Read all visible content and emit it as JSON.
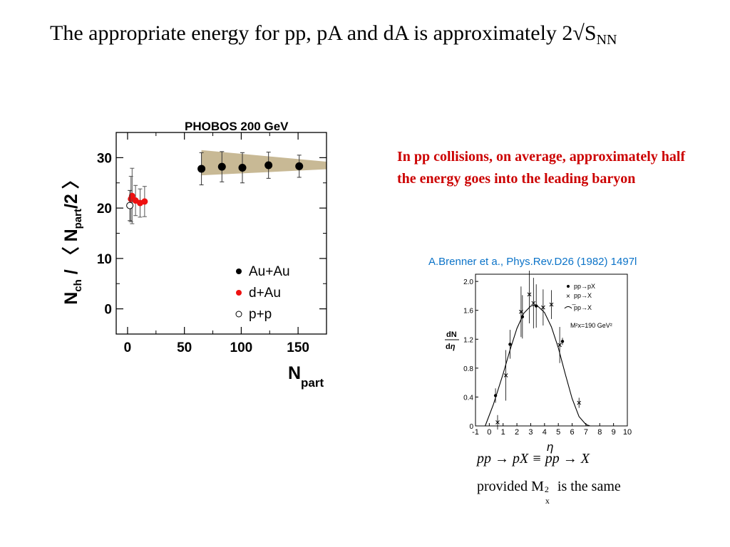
{
  "title": {
    "main": "The appropriate energy for pp, pA and dA is approximately 2√S",
    "sub": "NN"
  },
  "note": "In pp collisions, on average, approximately half the energy goes into the leading baryon",
  "citation": "A.Brenner et a., Phys.Rev.D26 (1982) 1497l",
  "equation1": "pp → pX ≡ pp → X",
  "equation2": {
    "prefix": "provided M",
    "sup": "2",
    "sub": "x",
    "suffix": " is the same"
  },
  "colors": {
    "note": "#cc0000",
    "citation": "#0b73c8",
    "dAu": "#ee1111",
    "band": "#c8b995"
  },
  "chart_data": [
    {
      "type": "scatter",
      "title": "PHOBOS 200 GeV",
      "xlabel": "N",
      "xlabel_sub": "part",
      "ylabel": "N_ch / 〈N_part/2〉",
      "xlim": [
        -10,
        175
      ],
      "ylim": [
        -5,
        35
      ],
      "xticks": [
        "0",
        "50",
        "100",
        "150"
      ],
      "yticks": [
        "0",
        "10",
        "20",
        "30"
      ],
      "legend_position": "bottom-right",
      "series": [
        {
          "name": "Au+Au",
          "marker": "filled-black",
          "x": [
            65,
            83,
            101,
            124,
            151
          ],
          "y": [
            27.8,
            28.2,
            28.0,
            28.5,
            28.3
          ],
          "err": [
            3.2,
            3.0,
            3.0,
            2.6,
            2.2
          ]
        },
        {
          "name": "d+Au",
          "marker": "filled-red",
          "x": [
            3,
            4,
            7,
            11,
            15
          ],
          "y": [
            21.8,
            22.4,
            21.5,
            21.0,
            21.3
          ],
          "err": [
            4.5,
            5.5,
            3.0,
            2.8,
            3.0
          ]
        },
        {
          "name": "p+p",
          "marker": "open",
          "x": [
            2
          ],
          "y": [
            20.5
          ],
          "err": [
            3.0
          ]
        }
      ],
      "band": {
        "x": [
          65,
          175
        ],
        "upper": [
          31.5,
          29.2
        ],
        "lower": [
          26.5,
          27.7
        ]
      }
    },
    {
      "type": "line",
      "xlabel": "η",
      "ylabel": "dN/dη",
      "xlim": [
        -1,
        10
      ],
      "ylim": [
        0,
        2.1
      ],
      "xticks": [
        "-1",
        "0",
        "1",
        "2",
        "3",
        "4",
        "5",
        "6",
        "7",
        "8",
        "9",
        "10"
      ],
      "yticks": [
        "0",
        "0.4",
        "0.8",
        "1.2",
        "1.6",
        "2.0"
      ],
      "legend": [
        "pp→pX",
        "pp→X",
        "̅pp→X",
        "M²x=190 GeV²"
      ],
      "series": [
        {
          "name": "pp→pX",
          "marker": "dot",
          "x": [
            0.45,
            1.5,
            2.4,
            3.4,
            5.3
          ],
          "y": [
            0.42,
            1.13,
            1.51,
            1.66,
            1.17
          ],
          "err": [
            0.1,
            0.2,
            0.3,
            0.3,
            0.05
          ]
        },
        {
          "name": "pp→X",
          "marker": "cross",
          "x": [
            0.6,
            1.2,
            2.3,
            2.9,
            3.2,
            3.9,
            4.5,
            5.1,
            6.5
          ],
          "y": [
            0.05,
            0.7,
            1.58,
            1.82,
            1.7,
            1.64,
            1.68,
            1.12,
            0.32
          ],
          "err": [
            0.1,
            0.35,
            0.35,
            0.4,
            0.35,
            0.25,
            0.2,
            0.25,
            0.07
          ]
        },
        {
          "name": "̅pp→X",
          "marker": "line",
          "x": [
            -0.3,
            0.3,
            1.0,
            1.5,
            2.0,
            2.5,
            3.0,
            3.25,
            3.5,
            4.0,
            4.5,
            5.0,
            5.5,
            6.0,
            6.5,
            7.0,
            7.3
          ],
          "y": [
            0.0,
            0.3,
            0.72,
            1.05,
            1.35,
            1.56,
            1.66,
            1.67,
            1.66,
            1.57,
            1.37,
            1.08,
            0.72,
            0.38,
            0.13,
            0.02,
            0.0
          ]
        }
      ]
    }
  ]
}
